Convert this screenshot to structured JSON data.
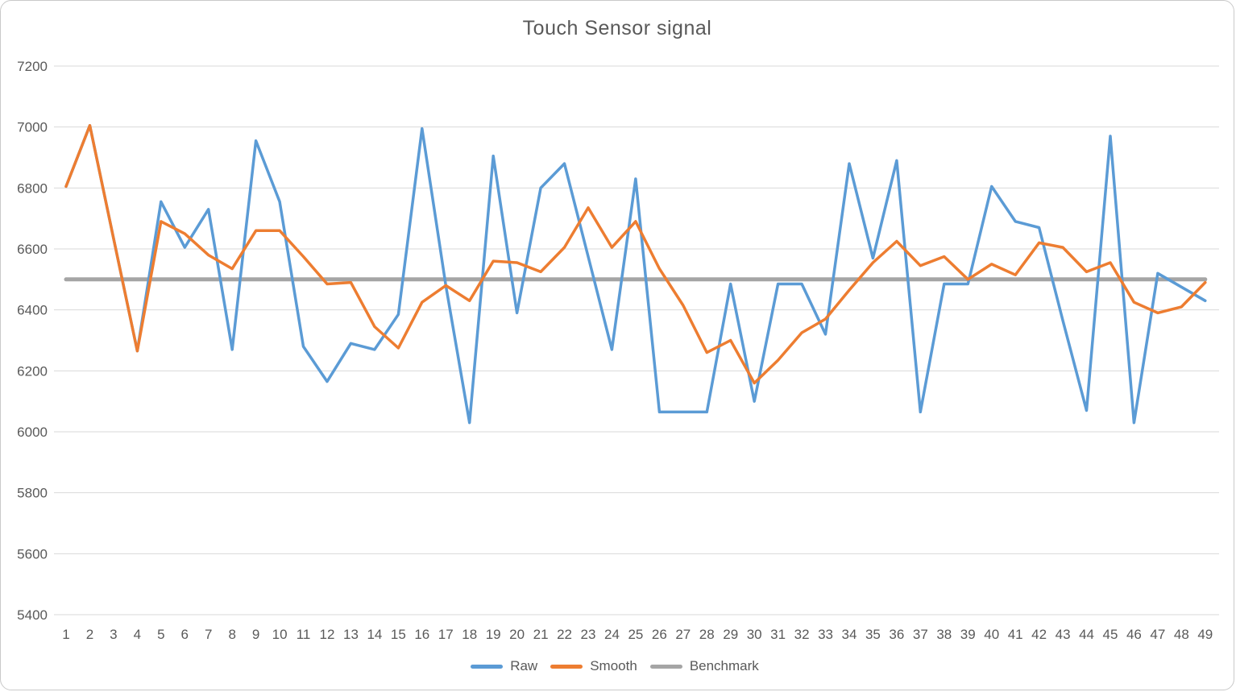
{
  "chart_data": {
    "type": "line",
    "title": "Touch Sensor signal",
    "xlabel": "",
    "ylabel": "",
    "x": [
      1,
      2,
      3,
      4,
      5,
      6,
      7,
      8,
      9,
      10,
      11,
      12,
      13,
      14,
      15,
      16,
      17,
      18,
      19,
      20,
      21,
      22,
      23,
      24,
      25,
      26,
      27,
      28,
      29,
      30,
      31,
      32,
      33,
      34,
      35,
      36,
      37,
      38,
      39,
      40,
      41,
      42,
      43,
      44,
      45,
      46,
      47,
      48,
      49
    ],
    "series": [
      {
        "name": "Raw",
        "color": "#5B9BD5",
        "stroke_width": 3.5,
        "values": [
          6805,
          7005,
          6635,
          6265,
          6755,
          6605,
          6730,
          6270,
          6955,
          6755,
          6280,
          6165,
          6290,
          6270,
          6385,
          6995,
          6480,
          6030,
          6905,
          6390,
          6800,
          6880,
          6575,
          6270,
          6830,
          6065,
          6065,
          6065,
          6485,
          6100,
          6485,
          6485,
          6320,
          6880,
          6570,
          6890,
          6065,
          6485,
          6485,
          6805,
          6690,
          6670,
          6365,
          6070,
          6970,
          6030,
          6520,
          6475,
          6430
        ]
      },
      {
        "name": "Smooth",
        "color": "#ED7D31",
        "stroke_width": 3.5,
        "values": [
          6805,
          7005,
          6635,
          6265,
          6690,
          6650,
          6580,
          6535,
          6660,
          6660,
          6575,
          6485,
          6490,
          6345,
          6275,
          6425,
          6480,
          6430,
          6560,
          6555,
          6525,
          6605,
          6735,
          6605,
          6690,
          6535,
          6415,
          6260,
          6300,
          6160,
          6235,
          6325,
          6370,
          6465,
          6555,
          6625,
          6545,
          6575,
          6500,
          6550,
          6515,
          6620,
          6605,
          6525,
          6555,
          6425,
          6390,
          6410,
          6490
        ]
      },
      {
        "name": "Benchmark",
        "color": "#A5A5A5",
        "stroke_width": 5,
        "constant": 6500
      }
    ],
    "ylim": [
      5400,
      7200
    ],
    "ytick_step": 200,
    "yticks": [
      5400,
      5600,
      5800,
      6000,
      6200,
      6400,
      6600,
      6800,
      7000,
      7200
    ],
    "grid": true,
    "gridline_color": "#D9D9D9",
    "axis_line_color": "#D9D9D9",
    "text_color": "#595959",
    "legend_position": "bottom",
    "background_color": "#FFFFFF"
  }
}
